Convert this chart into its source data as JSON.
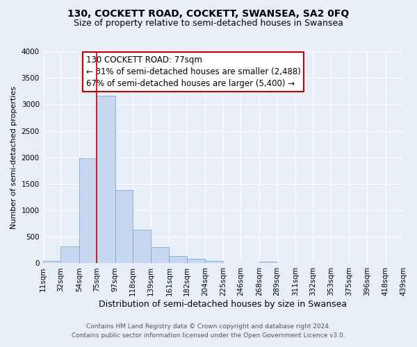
{
  "title": "130, COCKETT ROAD, COCKETT, SWANSEA, SA2 0FQ",
  "subtitle": "Size of property relative to semi-detached houses in Swansea",
  "xlabel": "Distribution of semi-detached houses by size in Swansea",
  "ylabel": "Number of semi-detached properties",
  "bar_color": "#c5d8f0",
  "bar_edge_color": "#7aadd4",
  "background_color": "#e8eef7",
  "grid_color": "#ffffff",
  "vline_x": 75,
  "vline_color": "#cc0000",
  "bin_edges": [
    11,
    32,
    54,
    75,
    97,
    118,
    139,
    161,
    182,
    204,
    225,
    246,
    268,
    289,
    311,
    332,
    353,
    375,
    396,
    418,
    439
  ],
  "counts": [
    50,
    320,
    1980,
    3160,
    1380,
    640,
    310,
    140,
    90,
    40,
    0,
    0,
    30,
    0,
    0,
    0,
    0,
    0,
    0,
    0
  ],
  "ylim": [
    0,
    4000
  ],
  "yticks": [
    0,
    500,
    1000,
    1500,
    2000,
    2500,
    3000,
    3500,
    4000
  ],
  "annotation_title": "130 COCKETT ROAD: 77sqm",
  "annotation_line1": "← 31% of semi-detached houses are smaller (2,488)",
  "annotation_line2": "67% of semi-detached houses are larger (5,400) →",
  "annotation_box_color": "#ffffff",
  "annotation_box_edge_color": "#cc0000",
  "footer_line1": "Contains HM Land Registry data © Crown copyright and database right 2024.",
  "footer_line2": "Contains public sector information licensed under the Open Government Licence v3.0.",
  "title_fontsize": 10,
  "subtitle_fontsize": 9,
  "xlabel_fontsize": 9,
  "ylabel_fontsize": 8,
  "tick_fontsize": 7.5,
  "annotation_fontsize": 8.5,
  "footer_fontsize": 6.5
}
